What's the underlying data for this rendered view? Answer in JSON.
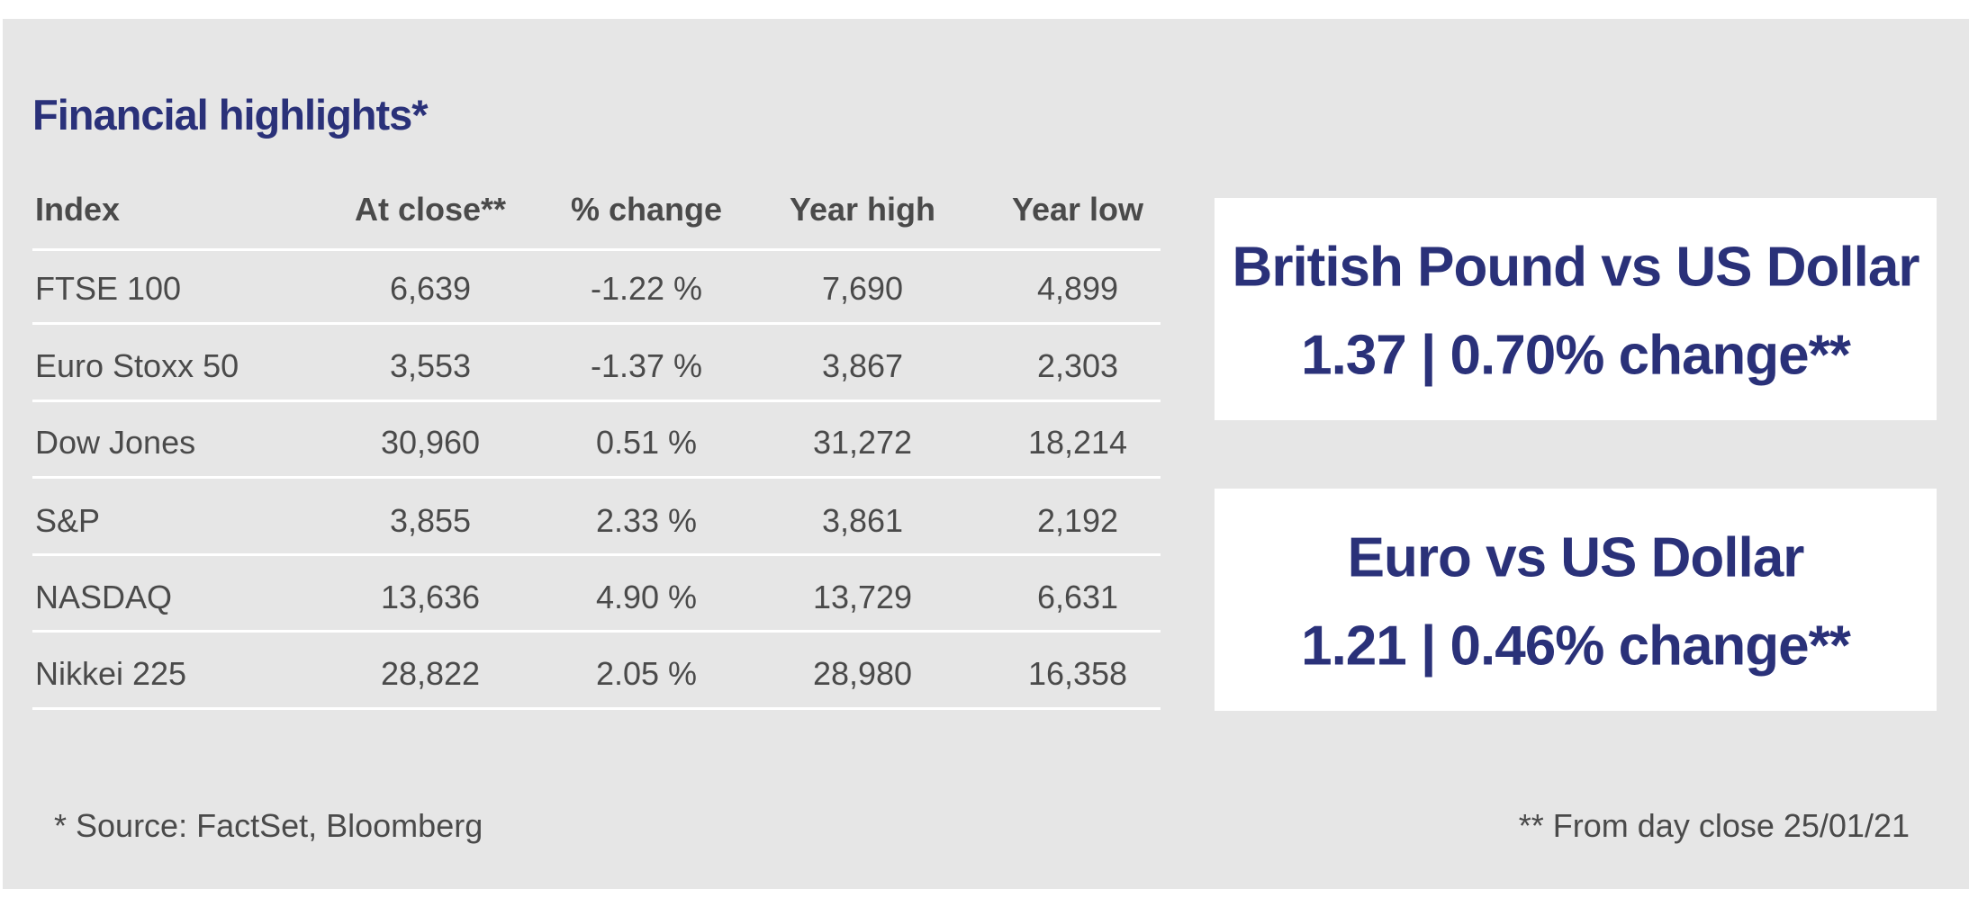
{
  "title": "Financial highlights*",
  "table": {
    "headers": [
      "Index",
      "At close**",
      "% change",
      "Year high",
      "Year low"
    ],
    "rows": [
      [
        "FTSE 100",
        "6,639",
        "-1.22 %",
        "7,690",
        "4,899"
      ],
      [
        "Euro Stoxx 50",
        "3,553",
        "-1.37 %",
        "3,867",
        "2,303"
      ],
      [
        "Dow Jones",
        "30,960",
        "0.51 %",
        "31,272",
        "18,214"
      ],
      [
        "S&P",
        "3,855",
        "2.33 %",
        "3,861",
        "2,192"
      ],
      [
        "NASDAQ",
        "13,636",
        "4.90 %",
        "13,729",
        "6,631"
      ],
      [
        "Nikkei 225",
        "28,822",
        "2.05 %",
        "28,980",
        "16,358"
      ]
    ]
  },
  "boxes": [
    {
      "title": "British Pound vs US Dollar",
      "value": "1.37 | 0.70% change**"
    },
    {
      "title": "Euro vs US Dollar",
      "value": "1.21 | 0.46% change**"
    }
  ],
  "footnotes": {
    "source": "* Source: FactSet, Bloomberg",
    "date": "** From day close 25/01/21"
  }
}
